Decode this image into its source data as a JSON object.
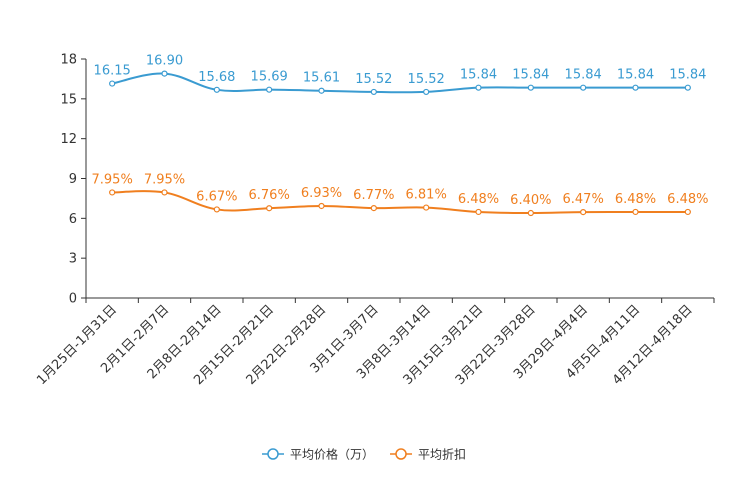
{
  "chart_data": {
    "type": "line",
    "title": "",
    "xlabel": "",
    "ylabel": "",
    "ylim": [
      0,
      18
    ],
    "yticks": [
      "0",
      "3",
      "6",
      "9",
      "12",
      "15",
      "18"
    ],
    "categories": [
      "1月25日-1月31日",
      "2月1日-2月7日",
      "2月8日-2月14日",
      "2月15日-2月21日",
      "2月22日-2月28日",
      "3月1日-3月7日",
      "3月8日-3月14日",
      "3月15日-3月21日",
      "3月22日-3月28日",
      "3月29日-4月4日",
      "4月5日-4月11日",
      "4月12日-4月18日"
    ],
    "series": [
      {
        "name": "平均价格（万）",
        "color": "#3a9bd1",
        "values": [
          16.15,
          16.9,
          15.68,
          15.69,
          15.61,
          15.52,
          15.52,
          15.84,
          15.84,
          15.84,
          15.84,
          15.84
        ],
        "labels": [
          "16.15",
          "16.90",
          "15.68",
          "15.69",
          "15.61",
          "15.52",
          "15.52",
          "15.84",
          "15.84",
          "15.84",
          "15.84",
          "15.84"
        ]
      },
      {
        "name": "平均折扣",
        "color": "#f07f1f",
        "values": [
          7.95,
          7.95,
          6.67,
          6.76,
          6.93,
          6.77,
          6.81,
          6.48,
          6.4,
          6.47,
          6.48,
          6.48
        ],
        "labels": [
          "7.95%",
          "7.95%",
          "6.67%",
          "6.76%",
          "6.93%",
          "6.77%",
          "6.81%",
          "6.48%",
          "6.40%",
          "6.47%",
          "6.48%",
          "6.48%"
        ]
      }
    ],
    "legend": {
      "position": "bottom-center"
    },
    "grid": false
  }
}
